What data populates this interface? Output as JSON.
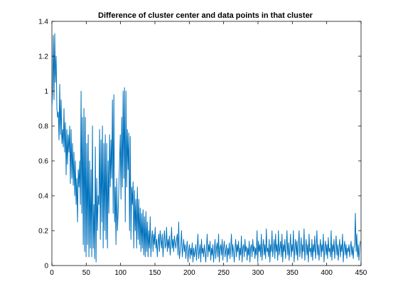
{
  "chart_data": {
    "type": "line",
    "title": "Difference of cluster center and data points in that cluster",
    "xlabel": "",
    "ylabel": "",
    "xlim": [
      0,
      450
    ],
    "ylim": [
      0,
      1.4
    ],
    "xticks": [
      0,
      50,
      100,
      150,
      200,
      250,
      300,
      350,
      400,
      450
    ],
    "yticks": [
      0,
      0.2,
      0.4,
      0.6,
      0.8,
      1,
      1.2,
      1.4
    ],
    "xtick_labels": [
      "0",
      "50",
      "100",
      "150",
      "200",
      "250",
      "300",
      "350",
      "400",
      "450"
    ],
    "ytick_labels": [
      "0",
      "0.2",
      "0.4",
      "0.6",
      "0.8",
      "1",
      "1.2",
      "1.4"
    ],
    "grid": false,
    "line_color": "#0072bd",
    "series": [
      {
        "values": [
          0.9,
          1.0,
          1.32,
          0.95,
          1.33,
          1.05,
          1.2,
          0.9,
          0.85,
          0.88,
          0.72,
          1.04,
          0.75,
          0.95,
          0.7,
          0.78,
          0.68,
          0.9,
          0.65,
          0.82,
          0.52,
          0.78,
          0.58,
          0.75,
          0.65,
          0.8,
          0.47,
          0.78,
          0.5,
          0.7,
          0.46,
          0.65,
          0.4,
          0.6,
          0.35,
          0.5,
          0.25,
          0.55,
          0.45,
          0.6,
          0.35,
          1.0,
          0.3,
          0.85,
          0.12,
          0.9,
          0.08,
          0.85,
          0.05,
          0.7,
          0.12,
          0.75,
          0.05,
          0.6,
          0.1,
          0.55,
          0.05,
          0.8,
          0.1,
          0.35,
          0.04,
          0.68,
          0.02,
          0.5,
          0.2,
          0.4,
          0.35,
          0.78,
          0.15,
          0.72,
          0.25,
          0.8,
          0.1,
          0.7,
          0.2,
          0.75,
          0.15,
          0.7,
          0.1,
          0.6,
          0.3,
          0.75,
          0.45,
          0.72,
          0.5,
          0.95,
          0.3,
          0.98,
          0.25,
          0.45,
          0.12,
          0.5,
          0.2,
          0.3,
          0.45,
          0.6,
          0.75,
          0.38,
          0.85,
          0.45,
          1.0,
          0.5,
          1.02,
          0.25,
          1.0,
          0.45,
          0.78,
          0.55,
          0.76,
          0.2,
          0.74,
          0.15,
          0.45,
          0.35,
          0.48,
          0.1,
          0.43,
          0.2,
          0.38,
          0.1,
          0.45,
          0.15,
          0.38,
          0.12,
          0.33,
          0.08,
          0.3,
          0.1,
          0.32,
          0.06,
          0.28,
          0.05,
          0.31,
          0.08,
          0.25,
          0.05,
          0.2,
          0.1,
          0.28,
          0.05,
          0.15,
          0.2,
          0.08,
          0.18,
          0.12,
          0.22,
          0.1,
          0.15,
          0.05,
          0.13,
          0.18,
          0.08,
          0.2,
          0.15,
          0.1,
          0.18,
          0.05,
          0.14,
          0.2,
          0.1,
          0.12,
          0.22,
          0.08,
          0.15,
          0.1,
          0.17,
          0.06,
          0.12,
          0.22,
          0.1,
          0.15,
          0.08,
          0.17,
          0.13,
          0.1,
          0.15,
          0.18,
          0.06,
          0.25,
          0.04,
          0.08,
          0.12,
          0.2,
          0.05,
          0.1,
          0.15,
          0.08,
          0.12,
          0.04,
          0.1,
          0.14,
          0.02,
          0.08,
          0.12,
          0.04,
          0.1,
          0.06,
          0.13,
          0.02,
          0.1,
          0.05,
          0.08,
          0.12,
          0.03,
          0.1,
          0.18,
          0.04,
          0.08,
          0.12,
          0.02,
          0.15,
          0.07,
          0.1,
          0.05,
          0.12,
          0.08,
          0.02,
          0.1,
          0.18,
          0.05,
          0.12,
          0.08,
          0.14,
          0.03,
          0.1,
          0.06,
          0.12,
          0.02,
          0.08,
          0.15,
          0.04,
          0.1,
          0.13,
          0.05,
          0.18,
          0.02,
          0.1,
          0.12,
          0.06,
          0.15,
          0.03,
          0.1,
          0.14,
          0.05,
          0.08,
          0.12,
          0.02,
          0.1,
          0.06,
          0.13,
          0.04,
          0.1,
          0.18,
          0.05,
          0.12,
          0.08,
          0.02,
          0.1,
          0.15,
          0.05,
          0.12,
          0.08,
          0.14,
          0.03,
          0.1,
          0.06,
          0.17,
          0.02,
          0.1,
          0.12,
          0.05,
          0.15,
          0.08,
          0.11,
          0.03,
          0.1,
          0.06,
          0.14,
          0.02,
          0.1,
          0.12,
          0.05,
          0.15,
          0.08,
          0.11,
          0.04,
          0.1,
          0.06,
          0.2,
          0.02,
          0.14,
          0.08,
          0.12,
          0.05,
          0.18,
          0.03,
          0.1,
          0.15,
          0.06,
          0.12,
          0.04,
          0.21,
          0.08,
          0.1,
          0.05,
          0.15,
          0.02,
          0.12,
          0.08,
          0.2,
          0.05,
          0.1,
          0.15,
          0.04,
          0.18,
          0.08,
          0.12,
          0.03,
          0.2,
          0.06,
          0.1,
          0.14,
          0.05,
          0.18,
          0.02,
          0.12,
          0.08,
          0.15,
          0.04,
          0.1,
          0.2,
          0.06,
          0.13,
          0.03,
          0.1,
          0.18,
          0.05,
          0.12,
          0.08,
          0.2,
          0.02,
          0.1,
          0.15,
          0.06,
          0.14,
          0.03,
          0.12,
          0.2,
          0.05,
          0.1,
          0.16,
          0.04,
          0.12,
          0.08,
          0.21,
          0.03,
          0.1,
          0.15,
          0.06,
          0.12,
          0.02,
          0.18,
          0.08,
          0.1,
          0.05,
          0.15,
          0.03,
          0.12,
          0.08,
          0.17,
          0.04,
          0.1,
          0.2,
          0.06,
          0.12,
          0.03,
          0.1,
          0.15,
          0.05,
          0.12,
          0.08,
          0.18,
          0.02,
          0.1,
          0.14,
          0.06,
          0.12,
          0.04,
          0.16,
          0.08,
          0.1,
          0.05,
          0.2,
          0.03,
          0.12,
          0.08,
          0.15,
          0.04,
          0.1,
          0.17,
          0.06,
          0.12,
          0.03,
          0.1,
          0.15,
          0.05,
          0.12,
          0.08,
          0.18,
          0.02,
          0.1,
          0.14,
          0.06,
          0.12,
          0.04,
          0.1,
          0.08,
          0.12,
          0.05,
          0.1,
          0.14,
          0.06,
          0.11,
          0.04,
          0.1,
          0.12,
          0.3,
          0.08,
          0.18,
          0.05,
          0.12,
          0.03,
          0.1,
          0.14
        ]
      }
    ]
  }
}
